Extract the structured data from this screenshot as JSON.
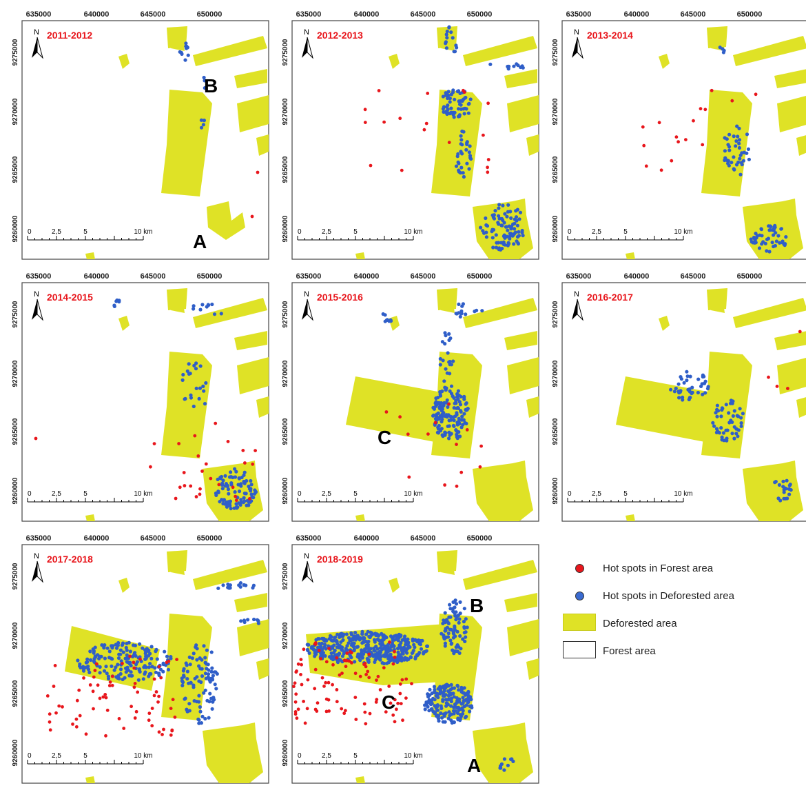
{
  "panels": [
    {
      "period": "2011-2012",
      "site_labels": [
        "B",
        "A"
      ]
    },
    {
      "period": "2012-2013",
      "site_labels": []
    },
    {
      "period": "2013-2014",
      "site_labels": []
    },
    {
      "period": "2014-2015",
      "site_labels": []
    },
    {
      "period": "2015-2016",
      "site_labels": [
        "C"
      ]
    },
    {
      "period": "2016-2017",
      "site_labels": []
    },
    {
      "period": "2017-2018",
      "site_labels": []
    },
    {
      "period": "2018-2019",
      "site_labels": [
        "B",
        "C",
        "A"
      ]
    }
  ],
  "axis": {
    "x_ticks": [
      "635000",
      "640000",
      "645000",
      "650000"
    ],
    "y_ticks": [
      "9275000",
      "9270000",
      "9265000",
      "9260000"
    ]
  },
  "scalebar": {
    "labels": [
      "0",
      "2,5",
      "5",
      "10 km"
    ]
  },
  "north_label": "N",
  "legend": {
    "items": [
      {
        "label": "Hot spots in Forest area",
        "symbol": "red-dot"
      },
      {
        "label": "Hot spots in Deforested area",
        "symbol": "blue-dot"
      },
      {
        "label": "Deforested area",
        "symbol": "yellow-box"
      },
      {
        "label": "Forest area",
        "symbol": "white-box"
      }
    ]
  },
  "colors": {
    "deforested": "#dfe226",
    "hotspot_forest": "#e8161c",
    "hotspot_deforested": "#2f5ec8",
    "panel_title": "#e8161c"
  }
}
